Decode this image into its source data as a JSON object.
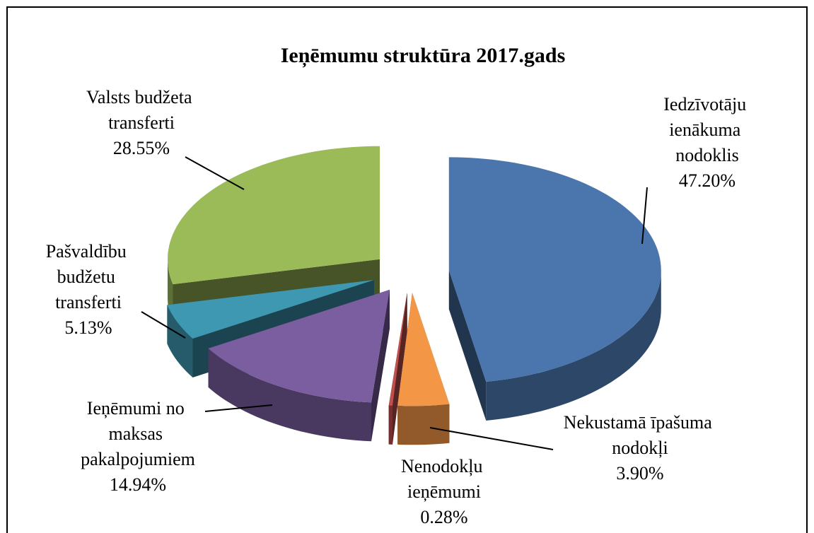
{
  "chart_data": {
    "type": "pie",
    "title": "Ieņēmumu struktūra 2017.gads",
    "categories": [
      "Iedzīvotāju ienākuma nodoklis",
      "Nekustamā īpašuma nodokļi",
      "Nenodokļu ieņēmumi",
      "Ieņēmumi no maksas pakalpojumiem",
      "Pašvaldību budžetu transferti",
      "Valsts budžeta transferti"
    ],
    "values": [
      47.2,
      3.9,
      0.28,
      14.94,
      5.13,
      28.55
    ],
    "value_labels": [
      "47.20%",
      "3.90%",
      "0.28%",
      "14.94%",
      "5.13%",
      "28.55%"
    ],
    "colors": [
      "#4a76ad",
      "#f39646",
      "#c0504d",
      "#7a5ea0",
      "#3f98b2",
      "#9bbb59"
    ]
  }
}
